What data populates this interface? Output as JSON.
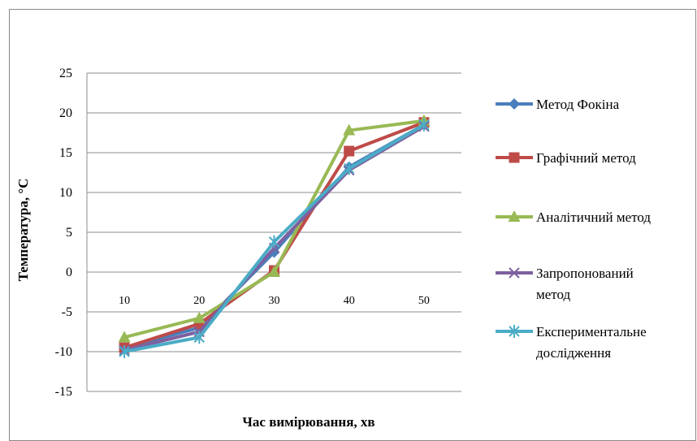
{
  "chart_data": {
    "type": "line",
    "title": "",
    "xlabel": "Час вимірювання, хв",
    "ylabel": "Температура, °С",
    "categories": [
      "10",
      "20",
      "30",
      "40",
      "50"
    ],
    "ylim": [
      -15,
      25
    ],
    "yticks": [
      25,
      20,
      15,
      10,
      5,
      0,
      -5,
      -10,
      -15
    ],
    "grid": true,
    "legend_position": "right",
    "series": [
      {
        "name": "Метод Фокіна",
        "values": [
          -9.5,
          -7.0,
          2.5,
          13.2,
          18.5
        ],
        "color": "#4A7EBB",
        "marker": "diamond"
      },
      {
        "name": "Графічний метод",
        "values": [
          -9.5,
          -6.5,
          0.2,
          15.2,
          18.8
        ],
        "color": "#BE4B48",
        "marker": "square"
      },
      {
        "name": "Аналітичний метод",
        "values": [
          -8.2,
          -5.8,
          0.0,
          17.8,
          19.0
        ],
        "color": "#98B954",
        "marker": "triangle"
      },
      {
        "name": "Запропонований метод",
        "values": [
          -9.8,
          -7.5,
          3.0,
          12.8,
          18.3
        ],
        "color": "#7D60A0",
        "marker": "x"
      },
      {
        "name": "Експериментальне дослідження",
        "values": [
          -10.0,
          -8.2,
          3.8,
          13.0,
          18.5
        ],
        "color": "#4BACC6",
        "marker": "star"
      }
    ],
    "legend_lines": [
      [
        "Метод Фокіна"
      ],
      [
        "Графічний метод"
      ],
      [
        "Аналітичний метод"
      ],
      [
        "Запропонований",
        "метод"
      ],
      [
        "Експериментальне",
        "дослідження"
      ]
    ]
  }
}
